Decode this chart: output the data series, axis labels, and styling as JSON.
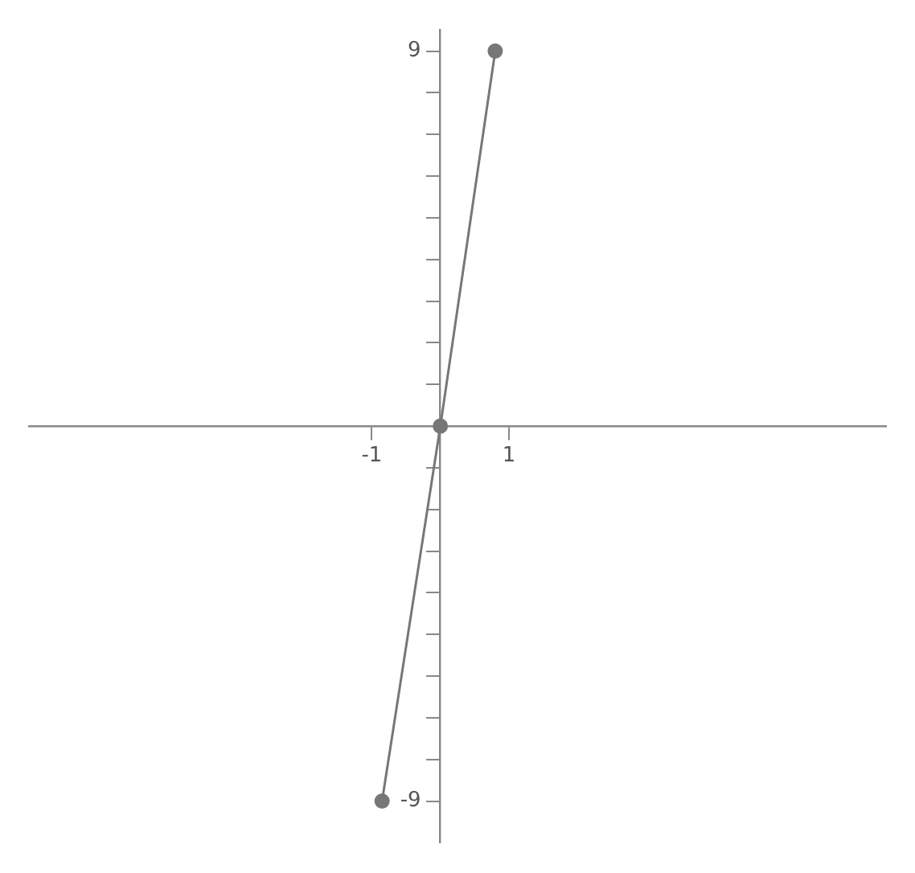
{
  "chart_data": {
    "type": "line",
    "x": [
      -0.85,
      0,
      0.8
    ],
    "series": [
      {
        "color": "#777777",
        "values": [
          -9,
          0,
          9
        ]
      }
    ],
    "xlim": [
      -6,
      6.5
    ],
    "ylim": [
      -10,
      9.5
    ],
    "xticks": [
      -1,
      1
    ],
    "yticks": [
      -9,
      {
        "value": -8,
        "label": null
      },
      {
        "value": -7,
        "label": null
      },
      {
        "value": -6,
        "label": null
      },
      {
        "value": -5,
        "label": null
      },
      {
        "value": -4,
        "label": null
      },
      {
        "value": -3,
        "label": null
      },
      {
        "value": -2,
        "label": null
      },
      {
        "value": -1,
        "label": null
      },
      {
        "value": 1,
        "label": null
      },
      {
        "value": 2,
        "label": null
      },
      {
        "value": 3,
        "label": null
      },
      {
        "value": 4,
        "label": null
      },
      {
        "value": 5,
        "label": null
      },
      {
        "value": 6,
        "label": null
      },
      {
        "value": 7,
        "label": null
      },
      {
        "value": 8,
        "label": null
      },
      9
    ],
    "grid": false,
    "legend": false,
    "marker": "circle",
    "line_style": "solid"
  }
}
